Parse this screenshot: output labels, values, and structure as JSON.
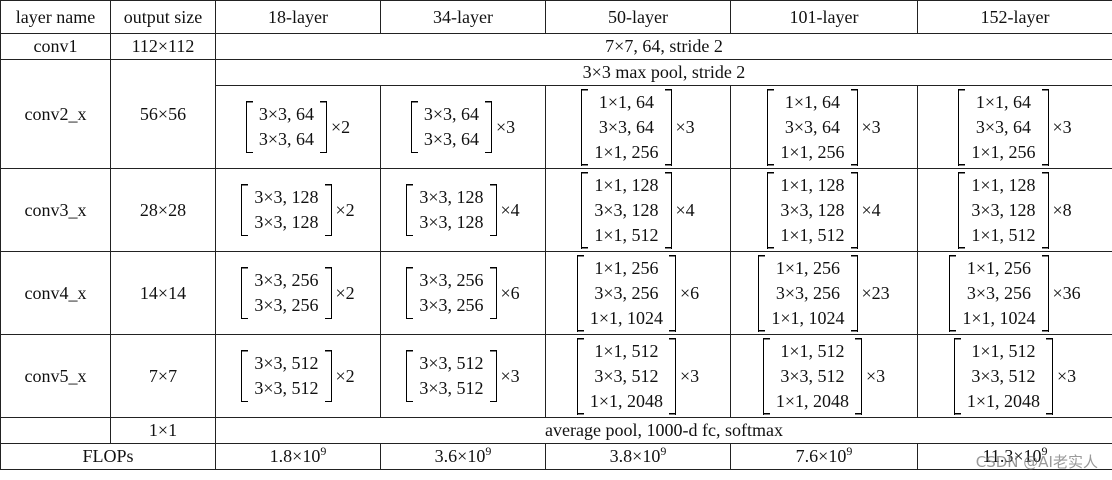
{
  "table": {
    "header": [
      "layer name",
      "output size",
      "18-layer",
      "34-layer",
      "50-layer",
      "101-layer",
      "152-layer"
    ],
    "conv1": {
      "name": "conv1",
      "output": "112×112",
      "spec": "7×7, 64, stride 2"
    },
    "pool": "3×3 max pool, stride 2",
    "stages": [
      {
        "name": "conv2_x",
        "output": "56×56",
        "blocks": [
          {
            "lines": [
              "3×3, 64",
              "3×3, 64"
            ],
            "repeat": "×2"
          },
          {
            "lines": [
              "3×3, 64",
              "3×3, 64"
            ],
            "repeat": "×3"
          },
          {
            "lines": [
              "1×1, 64",
              "3×3, 64",
              "1×1, 256"
            ],
            "repeat": "×3"
          },
          {
            "lines": [
              "1×1, 64",
              "3×3, 64",
              "1×1, 256"
            ],
            "repeat": "×3"
          },
          {
            "lines": [
              "1×1, 64",
              "3×3, 64",
              "1×1, 256"
            ],
            "repeat": "×3"
          }
        ]
      },
      {
        "name": "conv3_x",
        "output": "28×28",
        "blocks": [
          {
            "lines": [
              "3×3, 128",
              "3×3, 128"
            ],
            "repeat": "×2"
          },
          {
            "lines": [
              "3×3, 128",
              "3×3, 128"
            ],
            "repeat": "×4"
          },
          {
            "lines": [
              "1×1, 128",
              "3×3, 128",
              "1×1, 512"
            ],
            "repeat": "×4"
          },
          {
            "lines": [
              "1×1, 128",
              "3×3, 128",
              "1×1, 512"
            ],
            "repeat": "×4"
          },
          {
            "lines": [
              "1×1, 128",
              "3×3, 128",
              "1×1, 512"
            ],
            "repeat": "×8"
          }
        ]
      },
      {
        "name": "conv4_x",
        "output": "14×14",
        "blocks": [
          {
            "lines": [
              "3×3, 256",
              "3×3, 256"
            ],
            "repeat": "×2"
          },
          {
            "lines": [
              "3×3, 256",
              "3×3, 256"
            ],
            "repeat": "×6"
          },
          {
            "lines": [
              "1×1, 256",
              "3×3, 256",
              "1×1, 1024"
            ],
            "repeat": "×6"
          },
          {
            "lines": [
              "1×1, 256",
              "3×3, 256",
              "1×1, 1024"
            ],
            "repeat": "×23"
          },
          {
            "lines": [
              "1×1, 256",
              "3×3, 256",
              "1×1, 1024"
            ],
            "repeat": "×36"
          }
        ]
      },
      {
        "name": "conv5_x",
        "output": "7×7",
        "blocks": [
          {
            "lines": [
              "3×3, 512",
              "3×3, 512"
            ],
            "repeat": "×2"
          },
          {
            "lines": [
              "3×3, 512",
              "3×3, 512"
            ],
            "repeat": "×3"
          },
          {
            "lines": [
              "1×1, 512",
              "3×3, 512",
              "1×1, 2048"
            ],
            "repeat": "×3"
          },
          {
            "lines": [
              "1×1, 512",
              "3×3, 512",
              "1×1, 2048"
            ],
            "repeat": "×3"
          },
          {
            "lines": [
              "1×1, 512",
              "3×3, 512",
              "1×1, 2048"
            ],
            "repeat": "×3"
          }
        ]
      }
    ],
    "final": {
      "output": "1×1",
      "spec": "average pool, 1000-d fc, softmax"
    },
    "flops": {
      "name": "FLOPs",
      "values": [
        {
          "base": "1.8×10",
          "exp": "9"
        },
        {
          "base": "3.6×10",
          "exp": "9"
        },
        {
          "base": "3.8×10",
          "exp": "9"
        },
        {
          "base": "7.6×10",
          "exp": "9"
        },
        {
          "base": "11.3×10",
          "exp": "9"
        }
      ]
    }
  },
  "watermark": "CSDN @AI老实人"
}
